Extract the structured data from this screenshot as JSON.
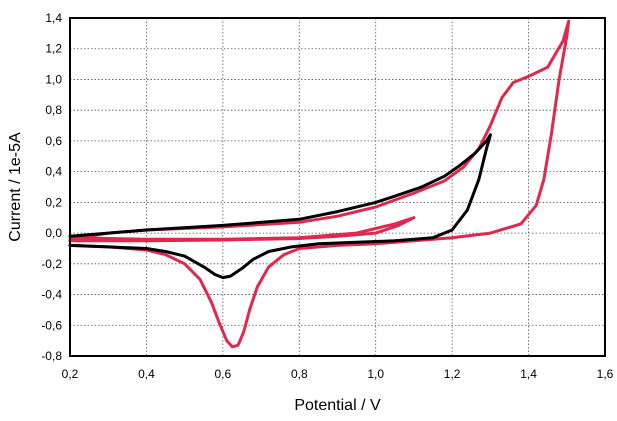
{
  "chart_data": {
    "type": "line",
    "title": "",
    "xlabel": "Potential / V",
    "ylabel": "Current / 1e-5A",
    "xlim": [
      0.2,
      1.6
    ],
    "ylim": [
      -0.8,
      1.4
    ],
    "x_ticks": [
      "0,2",
      "0,4",
      "0,6",
      "0,8",
      "1,0",
      "1,2",
      "1,4",
      "1,6"
    ],
    "y_ticks": [
      "1,4",
      "1,2",
      "1,0",
      "0,8",
      "0,6",
      "0,4",
      "0,2",
      "0,0",
      "-0,2",
      "-0,4",
      "-0,6",
      "-0,8"
    ],
    "grid": true,
    "grid_style": "dotted",
    "series": [
      {
        "color": "#e0284f",
        "points": [
          [
            0.2,
            -0.08
          ],
          [
            0.3,
            -0.09
          ],
          [
            0.4,
            -0.11
          ],
          [
            0.45,
            -0.14
          ],
          [
            0.5,
            -0.2
          ],
          [
            0.54,
            -0.3
          ],
          [
            0.57,
            -0.45
          ],
          [
            0.59,
            -0.58
          ],
          [
            0.61,
            -0.7
          ],
          [
            0.625,
            -0.74
          ],
          [
            0.64,
            -0.73
          ],
          [
            0.655,
            -0.64
          ],
          [
            0.67,
            -0.5
          ],
          [
            0.69,
            -0.35
          ],
          [
            0.72,
            -0.22
          ],
          [
            0.76,
            -0.14
          ],
          [
            0.8,
            -0.1
          ],
          [
            0.9,
            -0.08
          ],
          [
            1.0,
            -0.07
          ],
          [
            1.1,
            -0.05
          ],
          [
            1.2,
            -0.03
          ],
          [
            1.3,
            0.0
          ],
          [
            1.38,
            0.06
          ],
          [
            1.42,
            0.18
          ],
          [
            1.44,
            0.35
          ],
          [
            1.46,
            0.65
          ],
          [
            1.48,
            1.0
          ],
          [
            1.5,
            1.28
          ],
          [
            1.505,
            1.38
          ],
          [
            1.49,
            1.25
          ],
          [
            1.45,
            1.08
          ],
          [
            1.4,
            1.02
          ],
          [
            1.36,
            0.98
          ],
          [
            1.33,
            0.88
          ],
          [
            1.3,
            0.7
          ],
          [
            1.27,
            0.55
          ],
          [
            1.23,
            0.43
          ],
          [
            1.18,
            0.34
          ],
          [
            1.1,
            0.26
          ],
          [
            1.0,
            0.17
          ],
          [
            0.9,
            0.11
          ],
          [
            0.8,
            0.07
          ],
          [
            0.6,
            0.04
          ],
          [
            0.4,
            0.02
          ],
          [
            0.3,
            0.0
          ],
          [
            0.25,
            -0.02
          ],
          [
            0.2,
            -0.04
          ],
          [
            0.22,
            -0.03
          ],
          [
            0.3,
            -0.035
          ],
          [
            0.4,
            -0.04
          ],
          [
            0.6,
            -0.04
          ],
          [
            0.8,
            -0.03
          ],
          [
            0.9,
            -0.01
          ],
          [
            0.95,
            0.0
          ],
          [
            1.0,
            0.03
          ],
          [
            1.05,
            0.06
          ],
          [
            1.1,
            0.1
          ],
          [
            1.06,
            0.05
          ],
          [
            1.0,
            0.0
          ],
          [
            0.9,
            -0.02
          ],
          [
            0.8,
            -0.035
          ],
          [
            0.6,
            -0.045
          ],
          [
            0.4,
            -0.05
          ],
          [
            0.2,
            -0.05
          ]
        ]
      },
      {
        "color": "#000000",
        "points": [
          [
            0.2,
            -0.08
          ],
          [
            0.3,
            -0.09
          ],
          [
            0.4,
            -0.1
          ],
          [
            0.45,
            -0.12
          ],
          [
            0.5,
            -0.15
          ],
          [
            0.55,
            -0.22
          ],
          [
            0.58,
            -0.27
          ],
          [
            0.6,
            -0.29
          ],
          [
            0.62,
            -0.28
          ],
          [
            0.65,
            -0.23
          ],
          [
            0.68,
            -0.17
          ],
          [
            0.72,
            -0.12
          ],
          [
            0.78,
            -0.09
          ],
          [
            0.85,
            -0.07
          ],
          [
            0.95,
            -0.06
          ],
          [
            1.05,
            -0.05
          ],
          [
            1.1,
            -0.04
          ],
          [
            1.15,
            -0.03
          ],
          [
            1.2,
            0.02
          ],
          [
            1.24,
            0.15
          ],
          [
            1.27,
            0.35
          ],
          [
            1.29,
            0.55
          ],
          [
            1.3,
            0.64
          ],
          [
            1.29,
            0.6
          ],
          [
            1.26,
            0.52
          ],
          [
            1.22,
            0.44
          ],
          [
            1.18,
            0.37
          ],
          [
            1.12,
            0.3
          ],
          [
            1.05,
            0.24
          ],
          [
            1.0,
            0.2
          ],
          [
            0.9,
            0.14
          ],
          [
            0.8,
            0.09
          ],
          [
            0.6,
            0.05
          ],
          [
            0.4,
            0.02
          ],
          [
            0.3,
            0.0
          ],
          [
            0.2,
            -0.02
          ]
        ]
      }
    ]
  }
}
